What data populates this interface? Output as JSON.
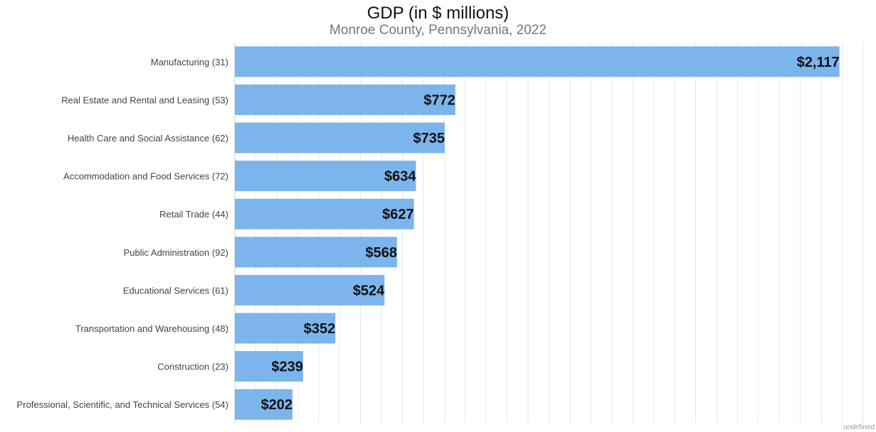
{
  "chart_data": {
    "type": "bar",
    "orientation": "horizontal",
    "title": "GDP (in $ millions)",
    "subtitle": "Monroe County, Pennsylvania, 2022",
    "categories": [
      "Manufacturing (31)",
      "Real Estate and Rental and Leasing (53)",
      "Health Care and Social Assistance (62)",
      "Accommodation and Food Services (72)",
      "Retail Trade (44)",
      "Public Administration (92)",
      "Educational Services (61)",
      "Transportation and Warehousing (48)",
      "Construction (23)",
      "Professional, Scientific, and Technical Services (54)"
    ],
    "values": [
      2117,
      772,
      735,
      634,
      627,
      568,
      524,
      352,
      239,
      202
    ],
    "value_labels": [
      "$2,117",
      "$772",
      "$735",
      "$634",
      "$627",
      "$568",
      "$524",
      "$352",
      "$239",
      "$202"
    ],
    "xlim": [
      0,
      2200
    ],
    "grid": true,
    "legend": "none",
    "bar_color": "#7cb5ec"
  },
  "footer_note": "undefined"
}
